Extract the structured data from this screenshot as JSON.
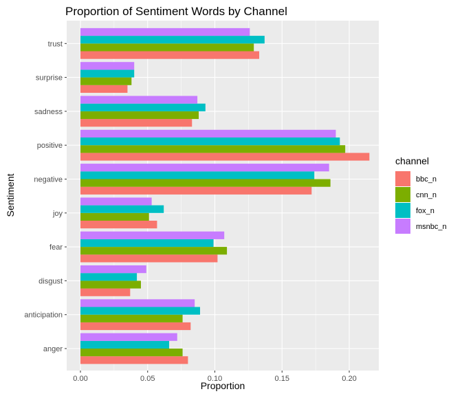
{
  "chart_data": {
    "type": "bar",
    "orientation": "horizontal",
    "title": "Proportion of Sentiment Words by Channel",
    "xlabel": "Proportion",
    "ylabel": "Sentiment",
    "xlim": [
      0,
      0.22
    ],
    "x_ticks": [
      0.0,
      0.05,
      0.1,
      0.15,
      0.2
    ],
    "x_tick_labels": [
      "0.00",
      "0.05",
      "0.10",
      "0.15",
      "0.20"
    ],
    "grid": true,
    "categories": [
      "anger",
      "anticipation",
      "disgust",
      "fear",
      "joy",
      "negative",
      "positive",
      "sadness",
      "surprise",
      "trust"
    ],
    "legend": {
      "title": "channel",
      "position": "right"
    },
    "series": [
      {
        "name": "bbc_n",
        "color": "#F8766D",
        "values": [
          0.08,
          0.082,
          0.037,
          0.102,
          0.057,
          0.172,
          0.215,
          0.083,
          0.035,
          0.133
        ]
      },
      {
        "name": "cnn_n",
        "color": "#7CAE00",
        "values": [
          0.076,
          0.076,
          0.045,
          0.109,
          0.051,
          0.186,
          0.197,
          0.088,
          0.038,
          0.129
        ]
      },
      {
        "name": "fox_n",
        "color": "#00BFC4",
        "values": [
          0.066,
          0.089,
          0.042,
          0.099,
          0.062,
          0.174,
          0.193,
          0.093,
          0.04,
          0.137
        ]
      },
      {
        "name": "msnbc_n",
        "color": "#C77CFF",
        "values": [
          0.072,
          0.085,
          0.049,
          0.107,
          0.053,
          0.185,
          0.19,
          0.087,
          0.04,
          0.126
        ]
      }
    ]
  }
}
